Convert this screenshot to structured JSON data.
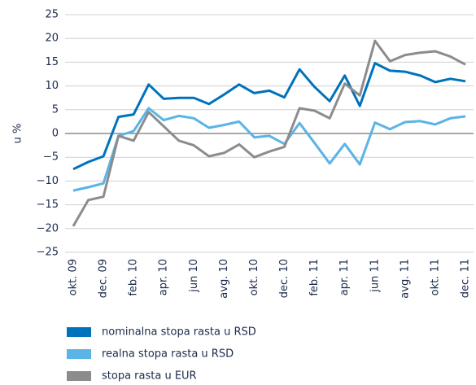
{
  "chart_data": {
    "type": "line",
    "y_label": "u %",
    "categories": [
      "okt. 09",
      null,
      "dec. 09",
      null,
      "feb. 10",
      null,
      "apr. 10",
      null,
      "jun 10",
      null,
      "avg. 10",
      null,
      "okt. 10",
      null,
      "dec. 10",
      null,
      "feb. 11",
      null,
      "apr. 11",
      null,
      "jun 11",
      null,
      "avg. 11",
      null,
      "okt. 11",
      null,
      "dec. 11"
    ],
    "series": [
      {
        "name": "nominalna stopa rasta u RSD",
        "color": "#0072bc",
        "values": [
          -7.5,
          -6,
          -4.8,
          3.5,
          4,
          10.3,
          7.3,
          7.5,
          7.5,
          6.2,
          8.2,
          10.3,
          8.5,
          9,
          7.6,
          13.5,
          9.8,
          6.8,
          12.2,
          5.8,
          14.8,
          13.2,
          13,
          12.2,
          10.8,
          11.5,
          11
        ]
      },
      {
        "name": "realna stopa rasta u RSD",
        "color": "#5ab4e5",
        "values": [
          -12,
          -11.3,
          -10.5,
          -0.5,
          0.5,
          5.3,
          2.8,
          3.7,
          3.2,
          1.2,
          1.8,
          2.5,
          -0.8,
          -0.5,
          -2.2,
          2.2,
          -2,
          -6.3,
          -2.2,
          -6.5,
          2.3,
          0.9,
          2.4,
          2.6,
          1.9,
          3.2,
          3.6
        ]
      },
      {
        "name": "stopa rasta u EUR",
        "color": "#8c8c8c",
        "values": [
          -19.5,
          -14,
          -13.3,
          -0.5,
          -1.5,
          4.5,
          1.5,
          -1.5,
          -2.5,
          -4.8,
          -4.1,
          -2.3,
          -5,
          -3.8,
          -2.8,
          5.3,
          4.8,
          3.2,
          10.5,
          8,
          19.5,
          15.2,
          16.5,
          17,
          17.3,
          16.2,
          14.5
        ]
      }
    ],
    "ylim": [
      -25,
      25
    ],
    "yticks": [
      {
        "value": -25,
        "label": "−25"
      },
      {
        "value": -20,
        "label": "−20"
      },
      {
        "value": -15,
        "label": "−15"
      },
      {
        "value": -10,
        "label": "−10"
      },
      {
        "value": -5,
        "label": "−5"
      },
      0,
      5,
      10,
      15,
      20,
      25
    ],
    "grid": true
  }
}
